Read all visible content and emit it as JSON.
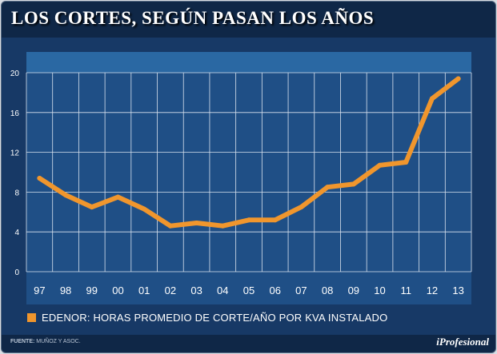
{
  "title": "LOS CORTES, SEGÚN PASAN LOS AÑOS",
  "colors": {
    "background": "#0f2747",
    "panel": "#173966",
    "header_bar": "#2a68a3",
    "plot_bg": "#1f4f86",
    "grid": "#d9e2ee",
    "line": "#f0962d",
    "text": "#ffffff"
  },
  "legend": {
    "label": "EDENOR: HORAS PROMEDIO DE CORTE/AÑO POR KVA INSTALADO"
  },
  "footer": {
    "source_label": "FUENTE:",
    "source_value": "MUÑOZ Y ASOC.",
    "logo": "iProfesional"
  },
  "chart_data": {
    "type": "line",
    "title": "LOS CORTES, SEGÚN PASAN LOS AÑOS",
    "xlabel": "",
    "ylabel": "",
    "categories": [
      "97",
      "98",
      "99",
      "00",
      "01",
      "02",
      "03",
      "04",
      "05",
      "06",
      "07",
      "08",
      "09",
      "10",
      "11",
      "12",
      "13"
    ],
    "series": [
      {
        "name": "EDENOR: HORAS PROMEDIO DE CORTE/AÑO POR KVA INSTALADO",
        "values": [
          9.4,
          7.7,
          6.5,
          7.5,
          6.3,
          4.6,
          4.9,
          4.6,
          5.2,
          5.2,
          6.5,
          8.5,
          8.8,
          10.7,
          11.0,
          17.4,
          19.4
        ]
      }
    ],
    "ylim": [
      0,
      20
    ],
    "yticks": [
      "0",
      "4",
      "8",
      "12",
      "16",
      "20"
    ],
    "grid": true,
    "legend_position": "bottom-left"
  }
}
